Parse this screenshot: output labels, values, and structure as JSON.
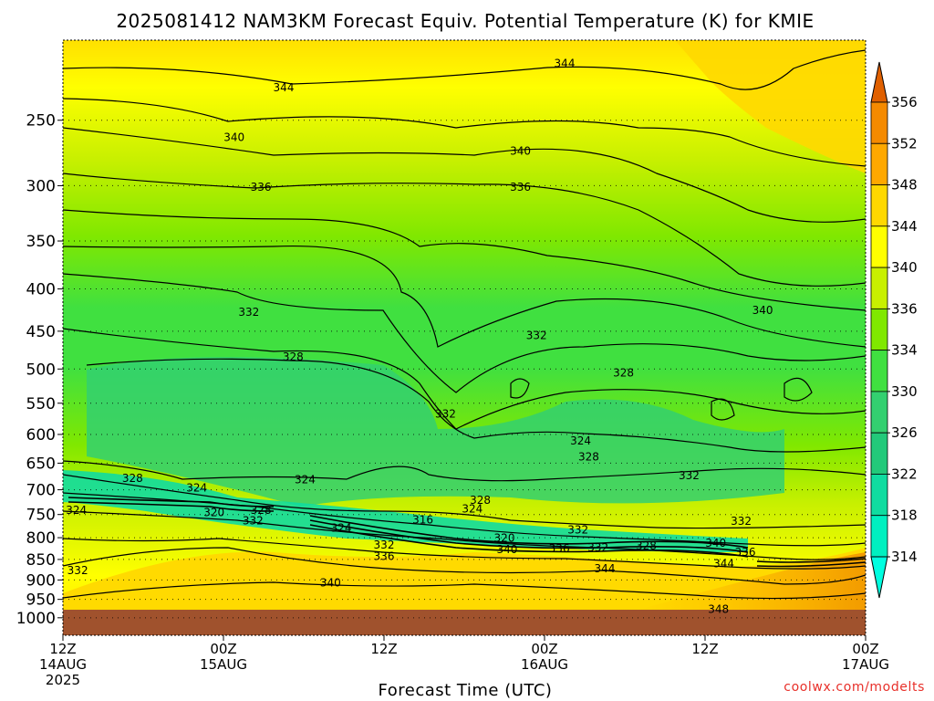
{
  "chart_data": {
    "type": "heatmap",
    "title": "2025081412 NAM3KM Forecast Equiv. Potential Temperature (K) for KMIE",
    "xlabel": "Forecast Time (UTC)",
    "ylabel": "",
    "credit": "coolwx.com/modelts",
    "y_axis": {
      "scale": "pressure-log",
      "range_hPa": [
        1050,
        200
      ],
      "ticks": [
        250,
        300,
        350,
        400,
        450,
        500,
        550,
        600,
        650,
        700,
        750,
        800,
        850,
        900,
        950,
        1000
      ]
    },
    "x_axis": {
      "range_hours": [
        0,
        60
      ],
      "ticks": [
        {
          "hour": 0,
          "lines": [
            "12Z",
            "14AUG",
            "2025"
          ]
        },
        {
          "hour": 12,
          "lines": [
            "00Z",
            "15AUG"
          ]
        },
        {
          "hour": 24,
          "lines": [
            "12Z"
          ]
        },
        {
          "hour": 36,
          "lines": [
            "00Z",
            "16AUG"
          ]
        },
        {
          "hour": 48,
          "lines": [
            "12Z"
          ]
        },
        {
          "hour": 60,
          "lines": [
            "00Z",
            "17AUG"
          ]
        }
      ]
    },
    "colorbar": {
      "levels": [
        314,
        318,
        322,
        326,
        330,
        334,
        336,
        340,
        344,
        348,
        352,
        356
      ],
      "colors": [
        "#00f0c0",
        "#10dca0",
        "#22c97a",
        "#33d070",
        "#40e040",
        "#80e800",
        "#c8f000",
        "#ffff00",
        "#ffd800",
        "#ffa800",
        "#f58a00",
        "#e06000"
      ],
      "under_color": "#00ffe0",
      "over_color": "#e06000"
    },
    "ground_color": "#a0522d",
    "contour_labels": [
      {
        "hour": 16.5,
        "p": 228,
        "value": "344"
      },
      {
        "hour": 37.5,
        "p": 213,
        "value": "344"
      },
      {
        "hour": 12.8,
        "p": 262,
        "value": "340"
      },
      {
        "hour": 34.2,
        "p": 272,
        "value": "340"
      },
      {
        "hour": 14.8,
        "p": 301,
        "value": "336"
      },
      {
        "hour": 34.2,
        "p": 301,
        "value": "336"
      },
      {
        "hour": 52.3,
        "p": 424,
        "value": "340"
      },
      {
        "hour": 13.9,
        "p": 426,
        "value": "332"
      },
      {
        "hour": 35.4,
        "p": 455,
        "value": "332"
      },
      {
        "hour": 17.2,
        "p": 483,
        "value": "328"
      },
      {
        "hour": 41.9,
        "p": 505,
        "value": "328"
      },
      {
        "hour": 28.6,
        "p": 566,
        "value": "332"
      },
      {
        "hour": 38.7,
        "p": 610,
        "value": "324"
      },
      {
        "hour": 39.3,
        "p": 638,
        "value": "328"
      },
      {
        "hour": 46.8,
        "p": 672,
        "value": "332"
      },
      {
        "hour": 5.2,
        "p": 677,
        "value": "328"
      },
      {
        "hour": 10.0,
        "p": 695,
        "value": "324"
      },
      {
        "hour": 18.1,
        "p": 680,
        "value": "324"
      },
      {
        "hour": 31.2,
        "p": 720,
        "value": "328"
      },
      {
        "hour": 30.6,
        "p": 737,
        "value": "324"
      },
      {
        "hour": 1.0,
        "p": 740,
        "value": "324"
      },
      {
        "hour": 11.3,
        "p": 745,
        "value": "320"
      },
      {
        "hour": 14.8,
        "p": 740,
        "value": "328"
      },
      {
        "hour": 14.2,
        "p": 762,
        "value": "332"
      },
      {
        "hour": 26.9,
        "p": 760,
        "value": "316"
      },
      {
        "hour": 20.8,
        "p": 778,
        "value": "324"
      },
      {
        "hour": 38.5,
        "p": 782,
        "value": "332"
      },
      {
        "hour": 50.7,
        "p": 763,
        "value": "332"
      },
      {
        "hour": 33.0,
        "p": 800,
        "value": "320"
      },
      {
        "hour": 24.0,
        "p": 815,
        "value": "332"
      },
      {
        "hour": 33.2,
        "p": 826,
        "value": "340"
      },
      {
        "hour": 37.1,
        "p": 824,
        "value": "336"
      },
      {
        "hour": 40.0,
        "p": 822,
        "value": "332"
      },
      {
        "hour": 43.6,
        "p": 817,
        "value": "328"
      },
      {
        "hour": 48.8,
        "p": 811,
        "value": "340"
      },
      {
        "hour": 51.0,
        "p": 832,
        "value": "336"
      },
      {
        "hour": 24.0,
        "p": 842,
        "value": "336"
      },
      {
        "hour": 49.4,
        "p": 859,
        "value": "344"
      },
      {
        "hour": 40.5,
        "p": 871,
        "value": "344"
      },
      {
        "hour": 1.1,
        "p": 875,
        "value": "332"
      },
      {
        "hour": 20.0,
        "p": 906,
        "value": "340"
      },
      {
        "hour": 49.0,
        "p": 975,
        "value": "348"
      }
    ]
  }
}
